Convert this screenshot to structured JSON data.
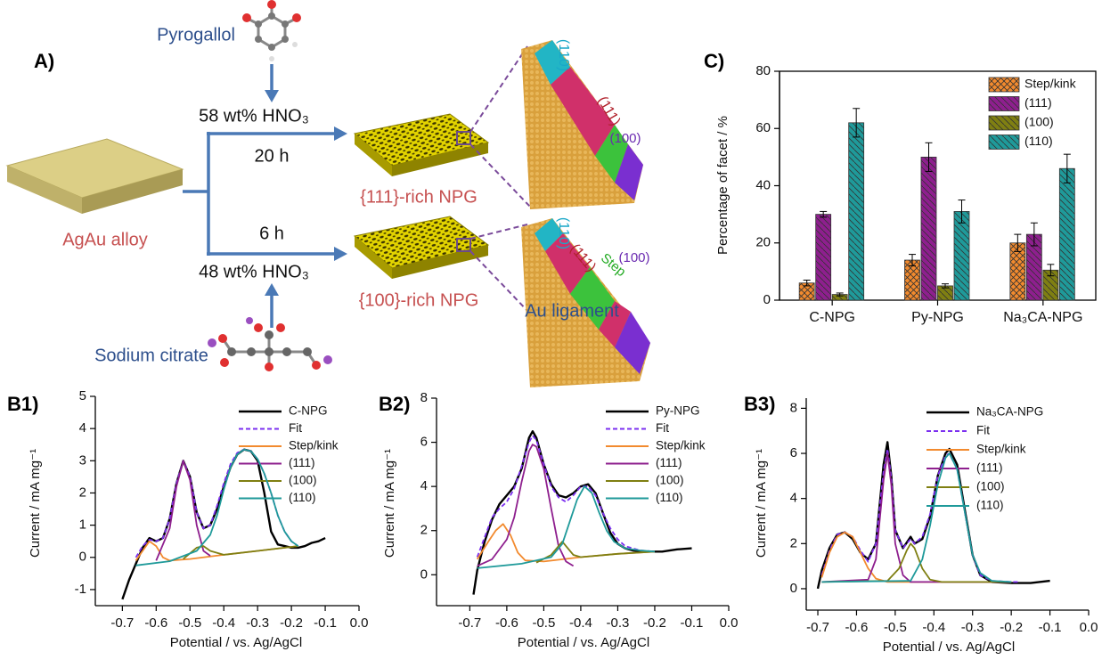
{
  "figure": {
    "panel_a": {
      "label": "A)",
      "pyrogallol": "Pyrogallol",
      "acid_top": "58 wt% HNO₃",
      "time_top": "20 h",
      "alloy": "AgAu alloy",
      "time_bottom": "6 h",
      "acid_bottom": "48 wt% HNO₃",
      "citrate": "Sodium citrate",
      "npg_top": "{111}-rich NPG",
      "npg_bottom": "{100}-rich NPG",
      "ligament": "Au ligament",
      "facet_top": [
        "(110)",
        "(111)",
        "(100)"
      ],
      "facet_bottom": [
        "(110)",
        "(111)",
        "Step",
        "(100)"
      ]
    }
  },
  "chart_data": [
    {
      "type": "bar",
      "label": "C)",
      "ylabel": "Percentage of facet / %",
      "categories": [
        "C-NPG",
        "Py-NPG",
        "Na₃CA-NPG"
      ],
      "ylim": [
        0,
        80
      ],
      "yticks": [
        0,
        20,
        40,
        60,
        80
      ],
      "series": [
        {
          "name": "Step/kink",
          "color": "#f28a2e",
          "hatch": "cross",
          "values": [
            6,
            14,
            20
          ],
          "errors": [
            1,
            2,
            3
          ]
        },
        {
          "name": "(111)",
          "color": "#8e1f8e",
          "hatch": "back",
          "values": [
            30,
            50,
            23
          ],
          "errors": [
            1,
            5,
            4
          ]
        },
        {
          "name": "(100)",
          "color": "#7f7f12",
          "hatch": "back",
          "values": [
            2,
            5,
            10.5
          ],
          "errors": [
            0.5,
            0.7,
            2
          ]
        },
        {
          "name": "(110)",
          "color": "#1f9a9a",
          "hatch": "back",
          "values": [
            62,
            31,
            46
          ],
          "errors": [
            5,
            4,
            5
          ]
        }
      ]
    },
    {
      "type": "line",
      "label": "B1)",
      "xlabel": "Potential / vs. Ag/AgCl",
      "ylabel": "Current / mA mg⁻¹",
      "xlim": [
        -0.78,
        0
      ],
      "xticks": [
        -0.7,
        -0.6,
        -0.5,
        -0.4,
        -0.3,
        -0.2,
        -0.1,
        {
          "value": 0,
          "label": "0.0"
        }
      ],
      "ylim": [
        -1.5,
        5
      ],
      "yticks": [
        -1,
        0,
        1,
        2,
        3,
        4,
        5
      ],
      "series": [
        {
          "name": "C-NPG",
          "color": "#000000",
          "x": [
            -0.7,
            -0.68,
            -0.66,
            -0.64,
            -0.62,
            -0.6,
            -0.58,
            -0.56,
            -0.54,
            -0.52,
            -0.5,
            -0.48,
            -0.46,
            -0.44,
            -0.42,
            -0.4,
            -0.38,
            -0.36,
            -0.34,
            -0.32,
            -0.3,
            -0.28,
            -0.26,
            -0.24,
            -0.22,
            -0.2,
            -0.18,
            -0.16,
            -0.14,
            -0.12,
            -0.1
          ],
          "values": [
            -1.3,
            -0.7,
            -0.2,
            0.3,
            0.6,
            0.5,
            0.6,
            1.2,
            2.3,
            3.0,
            2.5,
            1.4,
            0.9,
            1.0,
            1.5,
            2.2,
            2.8,
            3.2,
            3.35,
            3.3,
            3.0,
            2.0,
            0.8,
            0.4,
            0.35,
            0.3,
            0.3,
            0.35,
            0.45,
            0.5,
            0.6
          ]
        },
        {
          "name": "Fit",
          "color": "#7b2ff0",
          "dash": true,
          "x": [
            -0.66,
            -0.64,
            -0.62,
            -0.6,
            -0.58,
            -0.56,
            -0.54,
            -0.52,
            -0.5,
            -0.48,
            -0.46,
            -0.44,
            -0.42,
            -0.4,
            -0.38,
            -0.36,
            -0.34,
            -0.32,
            -0.3,
            -0.28,
            -0.26,
            -0.24,
            -0.22,
            -0.2,
            -0.18
          ],
          "values": [
            0.0,
            0.35,
            0.55,
            0.5,
            0.6,
            1.2,
            2.3,
            3.0,
            2.5,
            1.4,
            0.9,
            1.0,
            1.6,
            2.3,
            2.9,
            3.25,
            3.35,
            3.3,
            3.05,
            2.6,
            2.0,
            1.3,
            0.8,
            0.5,
            0.35
          ]
        },
        {
          "name": "Step/kink",
          "color": "#f28a2e",
          "x": [
            -0.66,
            -0.64,
            -0.62,
            -0.6,
            -0.58,
            -0.56,
            -0.5,
            -0.4,
            -0.3,
            -0.18
          ],
          "values": [
            -0.1,
            0.2,
            0.5,
            0.35,
            0.0,
            -0.1,
            -0.05,
            0.08,
            0.2,
            0.35
          ]
        },
        {
          "name": "(111)",
          "color": "#8e1f8e",
          "x": [
            -0.6,
            -0.56,
            -0.54,
            -0.52,
            -0.5,
            -0.48,
            -0.46,
            -0.44
          ],
          "values": [
            -0.1,
            0.9,
            2.2,
            3.0,
            2.4,
            1.0,
            0.2,
            0.05
          ]
        },
        {
          "name": "(100)",
          "color": "#7f7f12",
          "x": [
            -0.52,
            -0.48,
            -0.46,
            -0.44,
            -0.4,
            -0.3,
            -0.18
          ],
          "values": [
            -0.05,
            0.3,
            0.35,
            0.2,
            0.08,
            0.2,
            0.35
          ]
        },
        {
          "name": "(110)",
          "color": "#1f9a9a",
          "x": [
            -0.66,
            -0.56,
            -0.48,
            -0.44,
            -0.42,
            -0.4,
            -0.38,
            -0.36,
            -0.34,
            -0.32,
            -0.3,
            -0.28,
            -0.26,
            -0.24,
            -0.22,
            -0.2,
            -0.18
          ],
          "values": [
            -0.25,
            -0.12,
            0.2,
            0.7,
            1.3,
            2.1,
            2.8,
            3.2,
            3.35,
            3.3,
            3.05,
            2.6,
            2.0,
            1.3,
            0.8,
            0.5,
            0.35
          ]
        }
      ]
    },
    {
      "type": "line",
      "label": "B2)",
      "xlabel": "Potential / vs. Ag/AgCl",
      "ylabel": "Current / mA mg⁻¹",
      "xlim": [
        -0.79,
        0
      ],
      "xticks": [
        -0.7,
        -0.6,
        -0.5,
        -0.4,
        -0.3,
        -0.2,
        -0.1,
        {
          "value": 0,
          "label": "0.0"
        }
      ],
      "ylim": [
        -1.4,
        8
      ],
      "yticks": [
        0,
        2,
        4,
        6,
        8
      ],
      "series": [
        {
          "name": "Py-NPG",
          "color": "#000000",
          "x": [
            -0.69,
            -0.68,
            -0.66,
            -0.64,
            -0.62,
            -0.6,
            -0.58,
            -0.56,
            -0.54,
            -0.53,
            -0.52,
            -0.5,
            -0.48,
            -0.46,
            -0.44,
            -0.42,
            -0.4,
            -0.38,
            -0.36,
            -0.34,
            -0.32,
            -0.3,
            -0.28,
            -0.26,
            -0.22,
            -0.18,
            -0.14,
            -0.1
          ],
          "values": [
            -0.9,
            0.2,
            1.5,
            2.5,
            3.2,
            3.6,
            4.0,
            4.8,
            6.2,
            6.5,
            6.2,
            5.0,
            4.1,
            3.6,
            3.5,
            3.7,
            4.0,
            4.1,
            3.7,
            2.8,
            1.9,
            1.4,
            1.2,
            1.1,
            1.05,
            1.05,
            1.15,
            1.2
          ]
        },
        {
          "name": "Fit",
          "color": "#7b2ff0",
          "dash": true,
          "x": [
            -0.68,
            -0.66,
            -0.64,
            -0.62,
            -0.6,
            -0.58,
            -0.56,
            -0.54,
            -0.53,
            -0.52,
            -0.5,
            -0.48,
            -0.46,
            -0.44,
            -0.42,
            -0.4,
            -0.38,
            -0.36,
            -0.34,
            -0.32,
            -0.3,
            -0.28,
            -0.24,
            -0.2
          ],
          "values": [
            0.8,
            1.7,
            2.6,
            3.0,
            3.3,
            3.9,
            4.9,
            6.0,
            6.3,
            6.1,
            5.0,
            4.0,
            3.5,
            3.3,
            3.6,
            4.0,
            4.0,
            3.6,
            2.8,
            2.1,
            1.6,
            1.3,
            1.1,
            1.05
          ]
        },
        {
          "name": "Step/kink",
          "color": "#f28a2e",
          "x": [
            -0.68,
            -0.65,
            -0.63,
            -0.61,
            -0.59,
            -0.57,
            -0.55,
            -0.5,
            -0.4,
            -0.3,
            -0.2
          ],
          "values": [
            0.7,
            1.5,
            2.0,
            2.3,
            1.8,
            1.0,
            0.65,
            0.6,
            0.8,
            0.95,
            1.05
          ]
        },
        {
          "name": "(111)",
          "color": "#8e1f8e",
          "x": [
            -0.68,
            -0.64,
            -0.6,
            -0.58,
            -0.56,
            -0.54,
            -0.53,
            -0.52,
            -0.5,
            -0.48,
            -0.46,
            -0.44,
            -0.42
          ],
          "values": [
            0.4,
            0.7,
            1.6,
            2.6,
            4.2,
            5.6,
            5.9,
            5.8,
            4.8,
            3.0,
            1.3,
            0.6,
            0.4
          ]
        },
        {
          "name": "(100)",
          "color": "#7f7f12",
          "x": [
            -0.52,
            -0.48,
            -0.46,
            -0.45,
            -0.44,
            -0.42,
            -0.4,
            -0.3,
            -0.2
          ],
          "values": [
            0.55,
            0.9,
            1.3,
            1.5,
            1.3,
            0.9,
            0.8,
            0.95,
            1.05
          ]
        },
        {
          "name": "(110)",
          "color": "#1f9a9a",
          "x": [
            -0.68,
            -0.56,
            -0.48,
            -0.45,
            -0.43,
            -0.41,
            -0.39,
            -0.37,
            -0.35,
            -0.33,
            -0.31,
            -0.28,
            -0.24,
            -0.2
          ],
          "values": [
            0.3,
            0.5,
            0.8,
            1.4,
            2.4,
            3.4,
            4.0,
            3.7,
            2.8,
            2.0,
            1.5,
            1.2,
            1.1,
            1.05
          ]
        }
      ]
    },
    {
      "type": "line",
      "label": "B3)",
      "xlabel": "Potential / vs. Ag/AgCl",
      "ylabel": "Current / mA mg⁻¹",
      "xlim": [
        -0.73,
        0
      ],
      "xticks": [
        -0.7,
        -0.6,
        -0.5,
        -0.4,
        -0.3,
        -0.2,
        -0.1,
        {
          "value": 0,
          "label": "0.0"
        }
      ],
      "ylim": [
        -0.95,
        8.45
      ],
      "yticks": [
        0,
        2,
        4,
        6,
        8
      ],
      "series": [
        {
          "name": "Na₃CA-NPG",
          "color": "#000000",
          "x": [
            -0.7,
            -0.69,
            -0.67,
            -0.65,
            -0.63,
            -0.61,
            -0.59,
            -0.57,
            -0.55,
            -0.53,
            -0.52,
            -0.51,
            -0.5,
            -0.48,
            -0.46,
            -0.45,
            -0.43,
            -0.41,
            -0.39,
            -0.37,
            -0.36,
            -0.34,
            -0.32,
            -0.3,
            -0.28,
            -0.25,
            -0.2,
            -0.15,
            -0.1
          ],
          "values": [
            0.0,
            0.8,
            1.8,
            2.4,
            2.5,
            2.2,
            1.6,
            1.3,
            2.0,
            5.5,
            6.5,
            5.0,
            2.6,
            1.8,
            2.3,
            2.0,
            2.2,
            3.2,
            5.0,
            6.0,
            6.2,
            5.5,
            3.5,
            1.5,
            0.6,
            0.3,
            0.25,
            0.25,
            0.35
          ]
        },
        {
          "name": "Fit",
          "color": "#7b2ff0",
          "dash": true,
          "x": [
            -0.69,
            -0.67,
            -0.65,
            -0.63,
            -0.61,
            -0.59,
            -0.57,
            -0.55,
            -0.53,
            -0.52,
            -0.51,
            -0.5,
            -0.48,
            -0.46,
            -0.45,
            -0.43,
            -0.41,
            -0.39,
            -0.37,
            -0.36,
            -0.34,
            -0.32,
            -0.3,
            -0.28,
            -0.25,
            -0.2,
            -0.18
          ],
          "values": [
            0.6,
            1.7,
            2.4,
            2.5,
            2.3,
            1.7,
            1.2,
            2.0,
            5.2,
            6.2,
            4.9,
            2.6,
            1.8,
            2.2,
            2.0,
            2.3,
            3.3,
            5.0,
            5.9,
            6.0,
            5.3,
            3.4,
            1.5,
            0.6,
            0.35,
            0.3,
            0.3
          ]
        },
        {
          "name": "Step/kink",
          "color": "#f28a2e",
          "x": [
            -0.69,
            -0.67,
            -0.65,
            -0.63,
            -0.61,
            -0.59,
            -0.57,
            -0.55,
            -0.52,
            -0.4,
            -0.2
          ],
          "values": [
            0.5,
            1.6,
            2.3,
            2.5,
            2.3,
            1.6,
            0.9,
            0.45,
            0.3,
            0.3,
            0.3
          ]
        },
        {
          "name": "(111)",
          "color": "#8e1f8e",
          "x": [
            -0.69,
            -0.57,
            -0.55,
            -0.53,
            -0.52,
            -0.51,
            -0.5,
            -0.48,
            -0.46,
            -0.2
          ],
          "values": [
            0.3,
            0.4,
            1.3,
            4.8,
            6.0,
            4.6,
            2.0,
            0.6,
            0.3,
            0.3
          ]
        },
        {
          "name": "(100)",
          "color": "#7f7f12",
          "x": [
            -0.69,
            -0.52,
            -0.49,
            -0.47,
            -0.46,
            -0.45,
            -0.43,
            -0.41,
            -0.38,
            -0.2
          ],
          "values": [
            0.3,
            0.35,
            0.9,
            1.7,
            2.0,
            1.8,
            0.9,
            0.4,
            0.3,
            0.3
          ]
        },
        {
          "name": "(110)",
          "color": "#1f9a9a",
          "x": [
            -0.69,
            -0.46,
            -0.43,
            -0.41,
            -0.39,
            -0.37,
            -0.36,
            -0.34,
            -0.32,
            -0.3,
            -0.28,
            -0.25,
            -0.2
          ],
          "values": [
            0.3,
            0.35,
            1.3,
            2.8,
            4.6,
            5.8,
            6.0,
            5.3,
            3.4,
            1.5,
            0.7,
            0.35,
            0.3
          ]
        }
      ]
    }
  ]
}
